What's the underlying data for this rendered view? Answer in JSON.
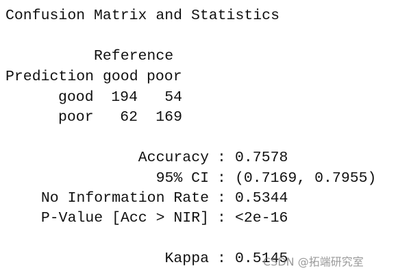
{
  "title": "Confusion Matrix and Statistics",
  "matrix": {
    "column_header": "Reference",
    "row_header": "Prediction",
    "columns": [
      "good",
      "poor"
    ],
    "rows": [
      {
        "label": "good",
        "values": [
          194,
          54
        ]
      },
      {
        "label": "poor",
        "values": [
          62,
          169
        ]
      }
    ]
  },
  "statistics": [
    {
      "label": "Accuracy",
      "value": 0.7578
    },
    {
      "label": "95% CI",
      "value": "(0.7169, 0.7955)"
    },
    {
      "label": "No Information Rate",
      "value": 0.5344
    },
    {
      "label": "P-Value [Acc > NIR]",
      "value": "<2e-16"
    },
    {
      "label": "Kappa",
      "value": 0.5145
    }
  ],
  "separator": ":",
  "watermark": "CSDN @拓端研究室"
}
